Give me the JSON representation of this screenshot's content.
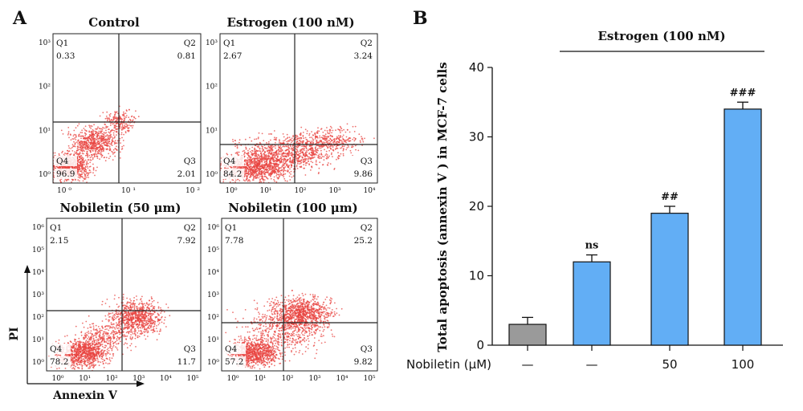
{
  "panel_a": {
    "letter": "A",
    "col_titles": [
      "Control",
      "Estrogen (100 nM)"
    ],
    "row_titles": [
      "Nobiletin (50 μm)",
      "Nobiletin (100 μm)"
    ],
    "ylabel": "PI",
    "xlabel": "Annexin V",
    "plots": [
      {
        "yticks": [
          "10³",
          "10²",
          "10¹",
          "10⁰"
        ],
        "xticks": [
          "10 ⁰",
          "10 ¹",
          "10 ²"
        ],
        "quadrants": {
          "Q1": "0.33",
          "Q2": "0.81",
          "Q3": "2.01",
          "Q4": "96.9"
        }
      },
      {
        "yticks": [
          "10³",
          "10²",
          "10¹",
          "10⁰"
        ],
        "xticks": [
          "10⁰",
          "10¹",
          "10²",
          "10³",
          "10⁴"
        ],
        "quadrants": {
          "Q1": "2.67",
          "Q2": "3.24",
          "Q3": "9.86",
          "Q4": "84.2"
        }
      },
      {
        "yticks": [
          "10⁶",
          "10⁵",
          "10⁴",
          "10³",
          "10²",
          "10¹",
          "10⁰"
        ],
        "xticks": [
          "10⁰",
          "10¹",
          "10²",
          "10³",
          "10⁴",
          "10⁵"
        ],
        "quadrants": {
          "Q1": "2.15",
          "Q2": "7.92",
          "Q3": "11.7",
          "Q4": "78.2"
        }
      },
      {
        "yticks": [
          "10⁶",
          "10⁵",
          "10⁴",
          "10³",
          "10²",
          "10¹",
          "10⁰"
        ],
        "xticks": [
          "10⁰",
          "10¹",
          "10²",
          "10³",
          "10⁴",
          "10⁵"
        ],
        "quadrants": {
          "Q1": "7.78",
          "Q2": "25.2",
          "Q3": "9.82",
          "Q4": "57.2"
        }
      }
    ],
    "point_color": "#e8433f"
  },
  "chart_data": {
    "type": "bar",
    "panel_letter": "B",
    "title": "Estrogen (100 nM)",
    "ylabel": "Total apoptosis (annexin V ) in MCF-7 cells",
    "xlabel_prefix": "Nobiletin (μM)",
    "categories": [
      "—",
      "—",
      "50",
      "100"
    ],
    "values": [
      3,
      12,
      19,
      34
    ],
    "errors": [
      1,
      1,
      1,
      1
    ],
    "annotations": [
      "",
      "ns",
      "##",
      "###"
    ],
    "bar_colors": [
      "#9a9a9a",
      "#62aef5",
      "#62aef5",
      "#62aef5"
    ],
    "yticks": [
      0,
      10,
      20,
      30,
      40
    ],
    "ylim": [
      0,
      40
    ]
  }
}
